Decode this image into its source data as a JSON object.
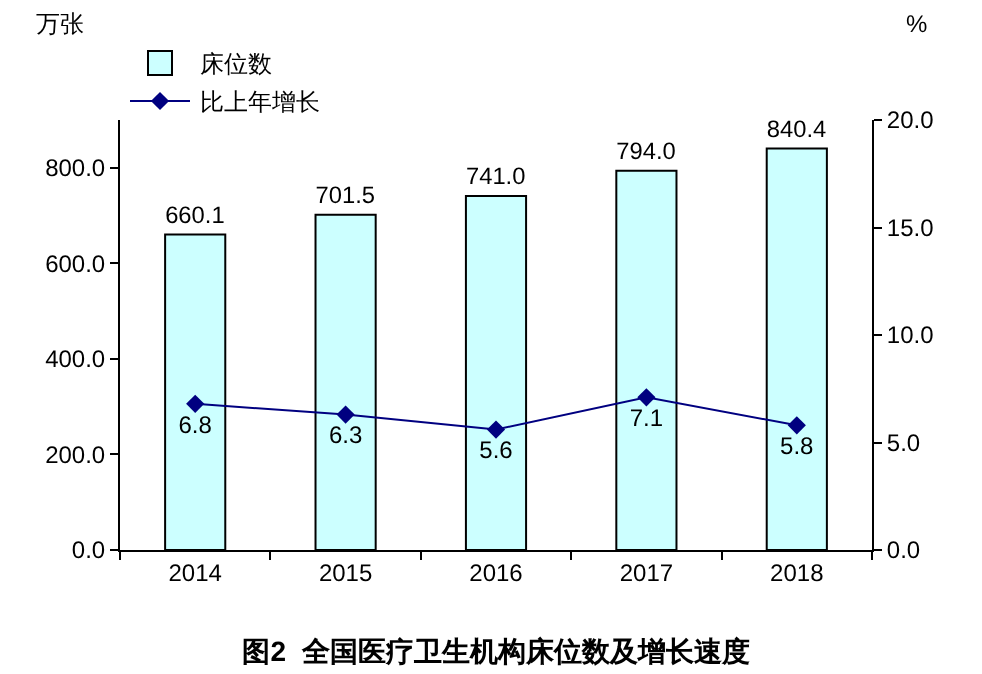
{
  "chart_data": {
    "type": "bar",
    "title": "图2  全国医疗卫生机构床位数及增长速度",
    "ylabel": "万张",
    "y2label": "%",
    "categories": [
      "2014",
      "2015",
      "2016",
      "2017",
      "2018"
    ],
    "series": [
      {
        "name": "床位数",
        "color": "#ccffff",
        "values": [
          660.1,
          701.5,
          741.0,
          794.0,
          840.4
        ],
        "value_labels": [
          "660.1",
          "701.5",
          "741.0",
          "794.0",
          "840.4"
        ]
      },
      {
        "name": "比上年增长",
        "type": "line",
        "axis": "y2",
        "color": "#000080",
        "values": [
          6.8,
          6.3,
          5.6,
          7.1,
          5.8
        ],
        "value_labels": [
          "6.8",
          "6.3",
          "5.6",
          "7.1",
          "5.8"
        ]
      }
    ],
    "ylim": [
      0,
      900
    ],
    "yticks": [
      {
        "value": 0,
        "label": "0.0"
      },
      {
        "value": 200,
        "label": "200.0"
      },
      {
        "value": 400,
        "label": "400.0"
      },
      {
        "value": 600,
        "label": "600.0"
      },
      {
        "value": 800,
        "label": "800.0"
      }
    ],
    "y2lim": [
      0,
      20
    ],
    "y2ticks": [
      {
        "value": 0,
        "label": "0.0"
      },
      {
        "value": 5,
        "label": "5.0"
      },
      {
        "value": 10,
        "label": "10.0"
      },
      {
        "value": 15,
        "label": "15.0"
      },
      {
        "value": 20,
        "label": "20.0"
      }
    ],
    "legend": "top left",
    "grid": false,
    "marker": "diamond",
    "line_style": "solid"
  }
}
